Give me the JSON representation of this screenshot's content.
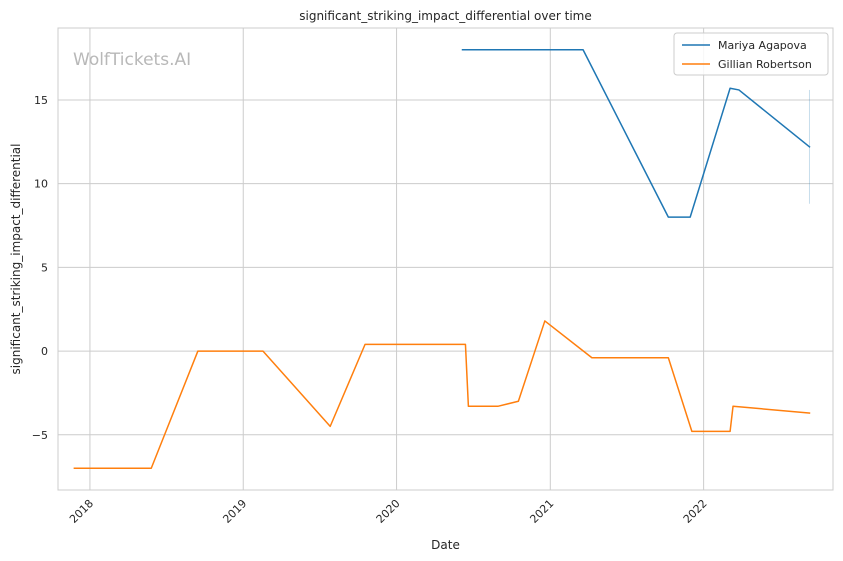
{
  "chart_data": {
    "type": "line",
    "title": "significant_striking_impact_differential over time",
    "xlabel": "Date",
    "ylabel": "significant_striking_impact_differential",
    "watermark": "WolfTickets.AI",
    "x_ticks": [
      "2018",
      "2019",
      "2020",
      "2021",
      "2022"
    ],
    "x_tick_dates": [
      "2018-01-01",
      "2019-01-01",
      "2020-01-01",
      "2021-01-01",
      "2022-01-01"
    ],
    "xlim": [
      "2017-10-17",
      "2022-11-05"
    ],
    "y_ticks": [
      "−5",
      "0",
      "5",
      "10",
      "15"
    ],
    "y_tick_values": [
      -5,
      0,
      5,
      10,
      15
    ],
    "ylim": [
      -8.3,
      19.3
    ],
    "grid": true,
    "legend_position": "top-right",
    "series": [
      {
        "name": "Mariya Agapova",
        "color": "#1f77b4",
        "points": [
          {
            "x": "2020-06-06",
            "y": 18.0
          },
          {
            "x": "2021-03-20",
            "y": 18.0
          },
          {
            "x": "2021-10-09",
            "y": 8.0
          },
          {
            "x": "2021-11-30",
            "y": 8.0
          },
          {
            "x": "2022-03-05",
            "y": 15.7
          },
          {
            "x": "2022-03-26",
            "y": 15.6
          },
          {
            "x": "2022-09-10",
            "y": 12.2
          }
        ],
        "error_bar": {
          "x": "2022-09-10",
          "low": 8.8,
          "high": 15.6
        }
      },
      {
        "name": "Gillian Robertson",
        "color": "#ff7f0e",
        "points": [
          {
            "x": "2017-11-25",
            "y": -7.0
          },
          {
            "x": "2018-05-27",
            "y": -7.0
          },
          {
            "x": "2018-09-15",
            "y": 0.0
          },
          {
            "x": "2019-02-17",
            "y": 0.0
          },
          {
            "x": "2019-07-27",
            "y": -4.5
          },
          {
            "x": "2019-10-18",
            "y": 0.4
          },
          {
            "x": "2020-06-13",
            "y": 0.4
          },
          {
            "x": "2020-06-20",
            "y": -3.3
          },
          {
            "x": "2020-08-29",
            "y": -3.3
          },
          {
            "x": "2020-10-17",
            "y": -3.0
          },
          {
            "x": "2020-12-19",
            "y": 1.8
          },
          {
            "x": "2021-04-10",
            "y": -0.4
          },
          {
            "x": "2021-10-09",
            "y": -0.4
          },
          {
            "x": "2021-12-04",
            "y": -4.8
          },
          {
            "x": "2022-03-05",
            "y": -4.8
          },
          {
            "x": "2022-03-12",
            "y": -3.3
          },
          {
            "x": "2022-09-10",
            "y": -3.7
          }
        ]
      }
    ]
  }
}
